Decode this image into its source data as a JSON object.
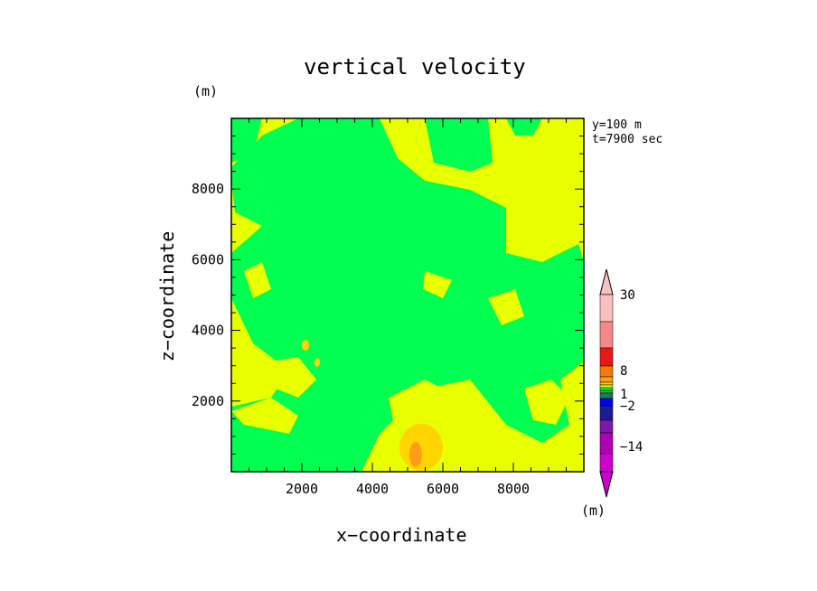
{
  "chart_data": {
    "type": "heatmap",
    "title": "vertical velocity",
    "xlabel": "x−coordinate",
    "ylabel": "z−coordinate",
    "axis_unit": "(m)",
    "colorbar_unit": "(m)",
    "annotation": [
      "y=100 m",
      "t=7900 sec"
    ],
    "xlim": [
      0,
      10000
    ],
    "ylim": [
      0,
      10000
    ],
    "x_ticks": [
      2000,
      4000,
      6000,
      8000
    ],
    "y_ticks": [
      2000,
      4000,
      6000,
      8000
    ],
    "x_tick_labels": [
      "2000",
      "4000",
      "6000",
      "8000"
    ],
    "y_tick_labels": [
      "2000",
      "4000",
      "6000",
      "8000"
    ],
    "colorbar": {
      "labels": [
        "30",
        "8",
        "1",
        "−2",
        "−14"
      ],
      "colors": [
        "#f9c0c0",
        "#f58888",
        "#e81818",
        "#f57a00",
        "#ff9d1a",
        "#ffd400",
        "#e8ff00",
        "#00ff50",
        "#2db82d",
        "#1a7a5a",
        "#0000ff",
        "#1a1a9a",
        "#7a1aa8",
        "#b000b0",
        "#d000d0"
      ]
    },
    "field_colors": {
      "positive_small": "#e8ff00",
      "negative_small": "#00ff50",
      "positive_medium": "#ffd400",
      "positive_large": "#ff9d1a"
    }
  }
}
